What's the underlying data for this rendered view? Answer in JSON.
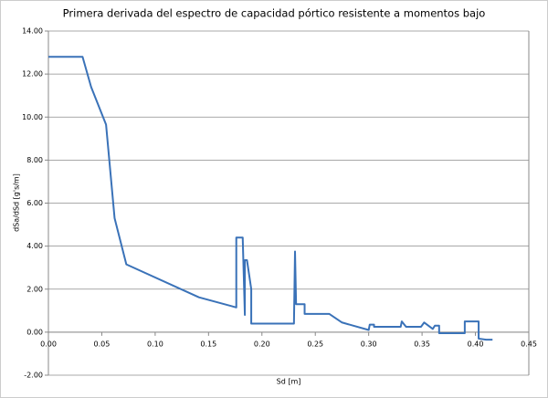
{
  "chart_data": {
    "type": "line",
    "title": "Primera derivada del espectro de capacidad pórtico resistente a momentos bajo",
    "x_label": "Sd [m]",
    "y_label": "dSa/dSd [g's/m]",
    "x": [
      0,
      0.032,
      0.04,
      0.054,
      0.062,
      0.073,
      0.141,
      0.176,
      0.176,
      0.182,
      0.184,
      0.184,
      0.186,
      0.19,
      0.19,
      0.23,
      0.231,
      0.232,
      0.24,
      0.24,
      0.263,
      0.275,
      0.3,
      0.301,
      0.305,
      0.305,
      0.33,
      0.331,
      0.335,
      0.349,
      0.352,
      0.36,
      0.362,
      0.366,
      0.366,
      0.39,
      0.39,
      0.403,
      0.403,
      0.41,
      0.416
    ],
    "values": [
      12.8,
      12.8,
      11.4,
      9.65,
      5.3,
      3.15,
      1.62,
      1.15,
      4.4,
      4.4,
      0.8,
      3.35,
      3.35,
      2.0,
      0.4,
      0.4,
      3.75,
      1.3,
      1.3,
      0.85,
      0.85,
      0.45,
      0.1,
      0.35,
      0.35,
      0.25,
      0.25,
      0.5,
      0.25,
      0.25,
      0.45,
      0.15,
      0.3,
      0.3,
      -0.05,
      -0.05,
      0.5,
      0.5,
      -0.3,
      -0.35,
      -0.35
    ],
    "color": "#3a72b8",
    "xlim": [
      0,
      0.45
    ],
    "ylim": [
      -2,
      14
    ],
    "xticks": [
      {
        "value": 0,
        "label": "0.00"
      },
      {
        "value": 0.05,
        "label": "0.05"
      },
      {
        "value": 0.1,
        "label": "0.10"
      },
      {
        "value": 0.15,
        "label": "0.15"
      },
      {
        "value": 0.2,
        "label": "0.20"
      },
      {
        "value": 0.25,
        "label": "0.25"
      },
      {
        "value": 0.3,
        "label": "0.30"
      },
      {
        "value": 0.35,
        "label": "0.35"
      },
      {
        "value": 0.4,
        "label": "0.40"
      },
      {
        "value": 0.45,
        "label": "0.45"
      }
    ],
    "yticks": [
      {
        "value": -2,
        "label": "-2.00"
      },
      {
        "value": 0,
        "label": "0.00"
      },
      {
        "value": 2,
        "label": "2.00"
      },
      {
        "value": 4,
        "label": "4.00"
      },
      {
        "value": 6,
        "label": "6.00"
      },
      {
        "value": 8,
        "label": "8.00"
      },
      {
        "value": 10,
        "label": "10.00"
      },
      {
        "value": 12,
        "label": "12.00"
      },
      {
        "value": 14,
        "label": "14.00"
      }
    ],
    "grid": true
  }
}
